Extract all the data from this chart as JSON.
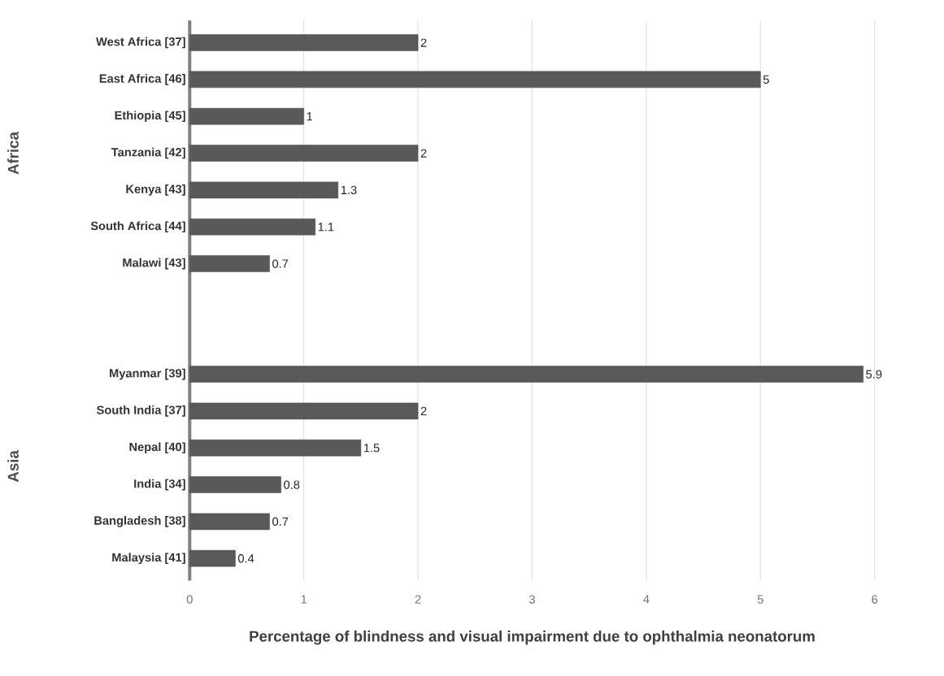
{
  "chart_data": {
    "type": "bar",
    "orientation": "horizontal",
    "categories": [
      "West Africa [37]",
      "East Africa [46]",
      "Ethiopia [45]",
      "Tanzania [42]",
      "Kenya [43]",
      "South Africa [44]",
      "Malawi [43]",
      null,
      null,
      "Myanmar [39]",
      "South India [37]",
      "Nepal [40]",
      "India [34]",
      "Bangladesh [38]",
      "Malaysia [41]"
    ],
    "values": [
      2,
      5,
      1,
      2,
      1.3,
      1.1,
      0.7,
      null,
      null,
      5.9,
      2,
      1.5,
      0.8,
      0.7,
      0.4
    ],
    "value_labels": [
      "2",
      "5",
      "1",
      "2",
      "1.3",
      "1.1",
      "0.7",
      null,
      null,
      "5.9",
      "2",
      "1.5",
      "0.8",
      "0.7",
      "0.4"
    ],
    "color": "#595959",
    "xlabel": "Percentage of blindness and visual impairment  due to ophthalmia neonatorum",
    "xlim": [
      0,
      6
    ],
    "xticks": [
      0,
      1,
      2,
      3,
      4,
      5,
      6
    ],
    "grid": "x",
    "annotations": [
      "Africa",
      "Asia"
    ]
  }
}
